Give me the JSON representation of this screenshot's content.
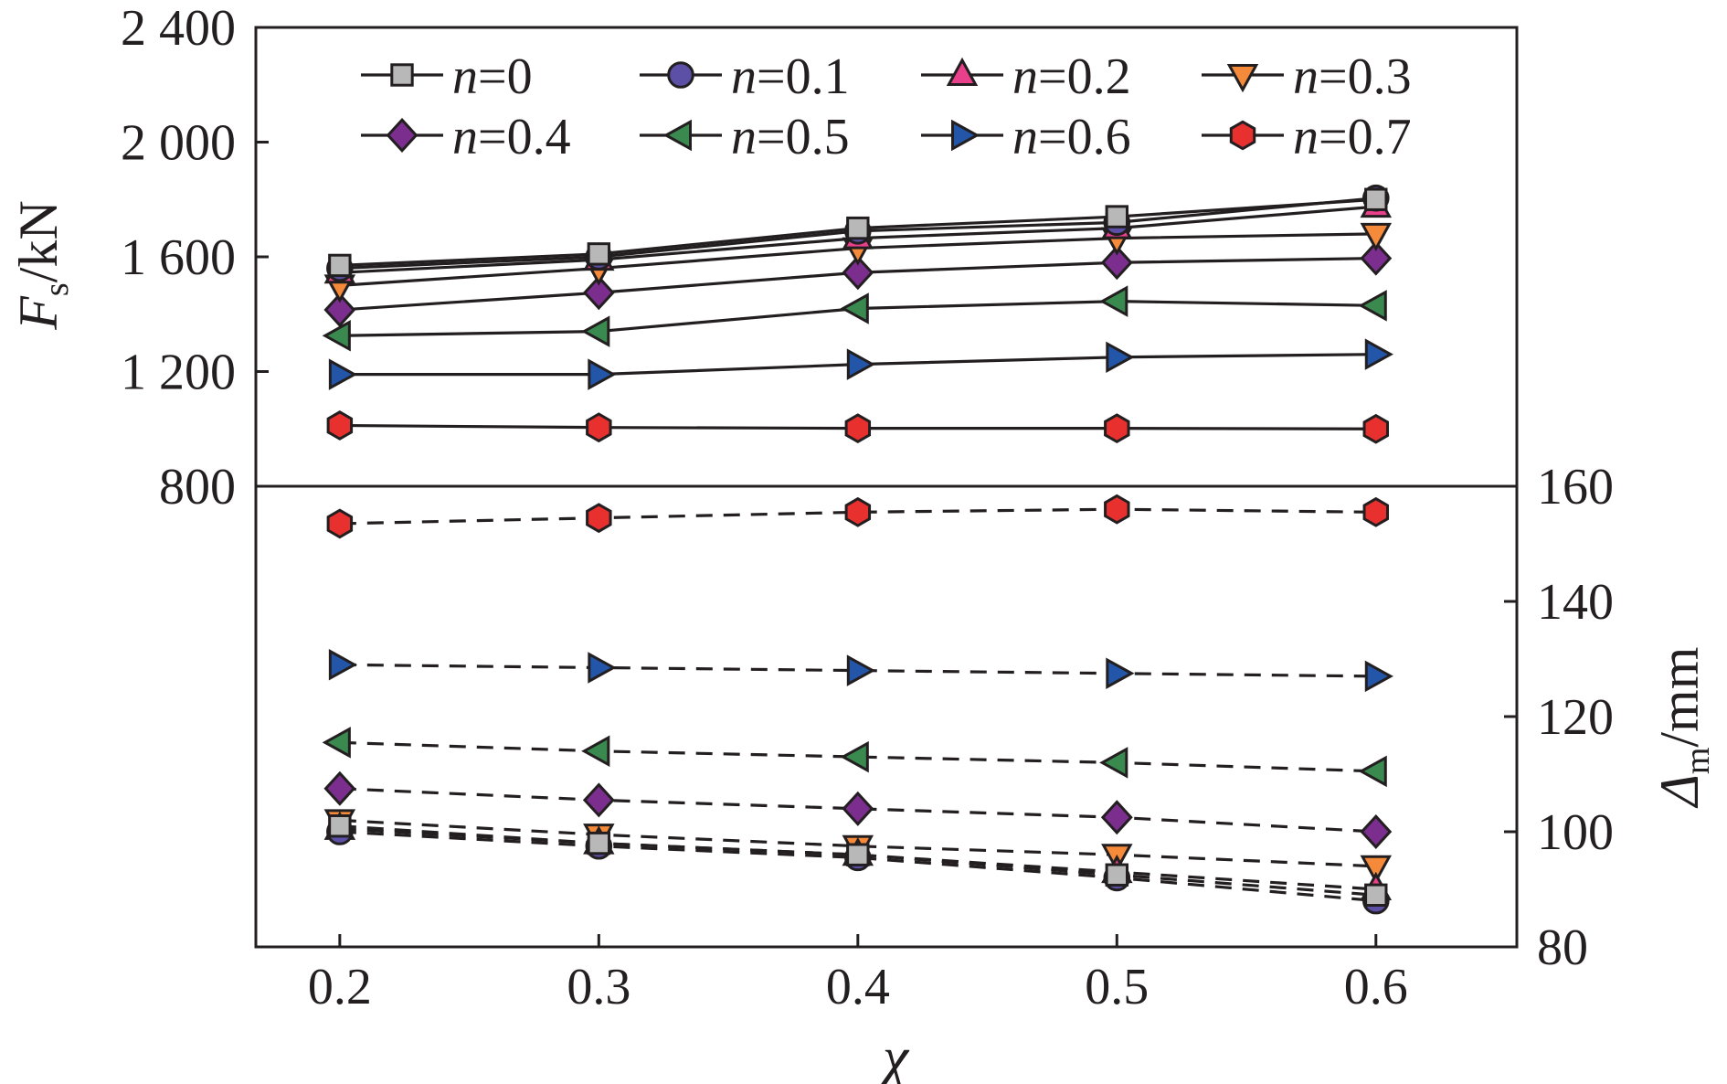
{
  "chart_data": {
    "type": "line",
    "x": [
      0.2,
      0.3,
      0.4,
      0.5,
      0.6
    ],
    "xticks": [
      "0.2",
      "0.3",
      "0.4",
      "0.5",
      "0.6"
    ],
    "xlabel": "χ",
    "panels": [
      {
        "id": "upper",
        "ylabel_main": "F",
        "ylabel_sub": "s",
        "ylabel_unit": "/kN",
        "ylim": [
          800,
          2400
        ],
        "yticks": [
          800,
          1200,
          1600,
          2000,
          2400
        ],
        "ytick_labels": [
          "800",
          "1 200",
          "1 600",
          "2 000",
          "2 400"
        ],
        "line_style": "solid",
        "series": [
          {
            "name": "n=0",
            "values": [
              1570,
              1610,
              1700,
              1740,
              1800
            ]
          },
          {
            "name": "n=0.1",
            "values": [
              1560,
              1600,
              1690,
              1720,
              1805
            ]
          },
          {
            "name": "n=0.2",
            "values": [
              1545,
              1590,
              1665,
              1700,
              1775
            ]
          },
          {
            "name": "n=0.3",
            "values": [
              1500,
              1560,
              1630,
              1665,
              1680
            ]
          },
          {
            "name": "n=0.4",
            "values": [
              1415,
              1475,
              1545,
              1580,
              1595
            ]
          },
          {
            "name": "n=0.5",
            "values": [
              1325,
              1340,
              1420,
              1445,
              1430
            ]
          },
          {
            "name": "n=0.6",
            "values": [
              1190,
              1190,
              1225,
              1250,
              1260
            ]
          },
          {
            "name": "n=0.7",
            "values": [
              1012,
              1005,
              1002,
              1002,
              1000
            ]
          }
        ]
      },
      {
        "id": "lower",
        "ylabel_main": "Δ",
        "ylabel_sub": "m",
        "ylabel_unit": "/mm",
        "ylim": [
          80,
          160
        ],
        "yticks": [
          80,
          100,
          120,
          140,
          160
        ],
        "ytick_labels": [
          "80",
          "100",
          "120",
          "140",
          "160"
        ],
        "line_style": "dashed",
        "series": [
          {
            "name": "n=0",
            "values": [
              101,
              98,
              96,
              92.5,
              89
            ]
          },
          {
            "name": "n=0.1",
            "values": [
              100,
              97.5,
              95.5,
              92,
              88
            ]
          },
          {
            "name": "n=0.2",
            "values": [
              100.5,
              98,
              96,
              93,
              90
            ]
          },
          {
            "name": "n=0.3",
            "values": [
              102,
              99.5,
              97.5,
              96,
              94
            ]
          },
          {
            "name": "n=0.4",
            "values": [
              107.5,
              105.5,
              104,
              102.5,
              100
            ]
          },
          {
            "name": "n=0.5",
            "values": [
              115.5,
              114,
              113,
              112,
              110.5
            ]
          },
          {
            "name": "n=0.6",
            "values": [
              129,
              128.5,
              128,
              127.5,
              127
            ]
          },
          {
            "name": "n=0.7",
            "values": [
              153.5,
              154.5,
              155.5,
              156,
              155.5
            ]
          }
        ]
      }
    ],
    "legend": {
      "placement": "top",
      "columns": 4,
      "entries": [
        {
          "prefix": "n",
          "suffix": "=0"
        },
        {
          "prefix": "n",
          "suffix": "=0.1"
        },
        {
          "prefix": "n",
          "suffix": "=0.2"
        },
        {
          "prefix": "n",
          "suffix": "=0.3"
        },
        {
          "prefix": "n",
          "suffix": "=0.4"
        },
        {
          "prefix": "n",
          "suffix": "=0.5"
        },
        {
          "prefix": "n",
          "suffix": "=0.6"
        },
        {
          "prefix": "n",
          "suffix": "=0.7"
        }
      ]
    },
    "series_styles": [
      {
        "marker": "square",
        "color": "#b8b8b8"
      },
      {
        "marker": "circle",
        "color": "#5b4fa6"
      },
      {
        "marker": "triangle-up",
        "color": "#e8408a"
      },
      {
        "marker": "triangle-down",
        "color": "#f48a3a"
      },
      {
        "marker": "diamond",
        "color": "#7b2e8e"
      },
      {
        "marker": "triangle-left",
        "color": "#3a8a4f"
      },
      {
        "marker": "triangle-right",
        "color": "#2356a8"
      },
      {
        "marker": "hexagon",
        "color": "#e8302e"
      }
    ],
    "grid": false
  }
}
